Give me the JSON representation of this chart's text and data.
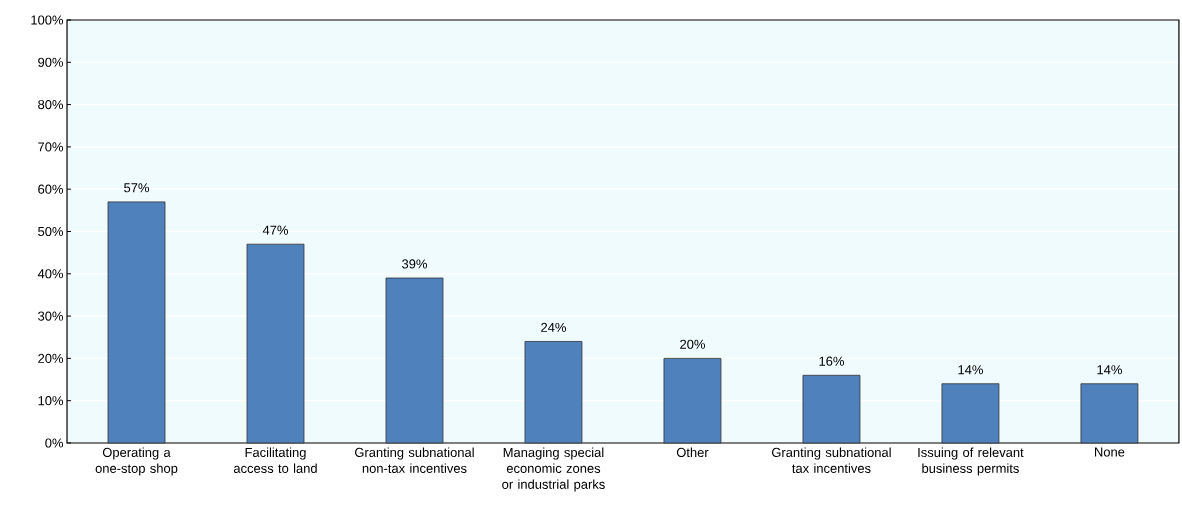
{
  "chart_data": {
    "type": "bar",
    "categories": [
      "Operating a one-stop shop",
      "Facilitating access to land",
      "Granting subnational non-tax incentives",
      "Managing special economic zones or industrial parks",
      "Other",
      "Granting subnational tax incentives",
      "Issuing of relevant business permits",
      "None"
    ],
    "values": [
      57,
      47,
      39,
      24,
      20,
      16,
      14,
      14
    ],
    "value_labels": [
      "57%",
      "47%",
      "39%",
      "24%",
      "20%",
      "16%",
      "14%",
      "14%"
    ],
    "color": "#4f81bd",
    "ylim": [
      0,
      100
    ],
    "yticks": [
      {
        "value": 0,
        "label": "0%"
      },
      {
        "value": 10,
        "label": "10%"
      },
      {
        "value": 20,
        "label": "20%"
      },
      {
        "value": 30,
        "label": "30%"
      },
      {
        "value": 40,
        "label": "40%"
      },
      {
        "value": 50,
        "label": "50%"
      },
      {
        "value": 60,
        "label": "60%"
      },
      {
        "value": 70,
        "label": "70%"
      },
      {
        "value": 80,
        "label": "80%"
      },
      {
        "value": 90,
        "label": "90%"
      },
      {
        "value": 100,
        "label": "100%"
      }
    ],
    "grid": true
  }
}
